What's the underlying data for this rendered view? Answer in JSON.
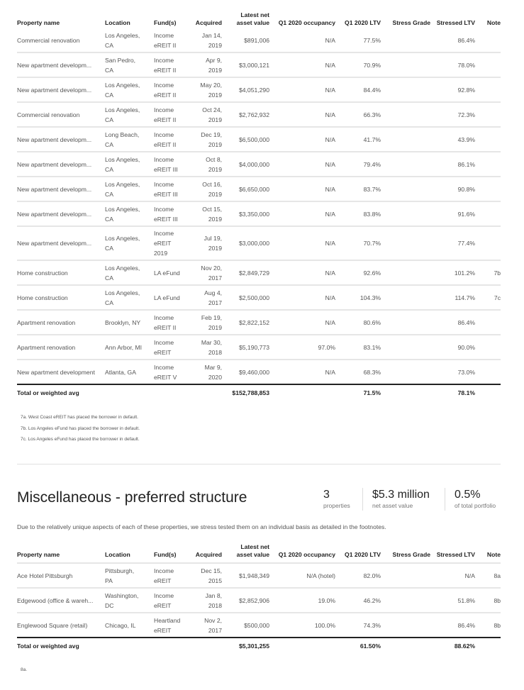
{
  "columns": {
    "name": "Property name",
    "location": "Location",
    "funds": "Fund(s)",
    "acquired": "Acquired",
    "nav_line1": "Latest net",
    "nav_line2": "asset value",
    "occupancy": "Q1 2020 occupancy",
    "ltv": "Q1 2020 LTV",
    "stress_grade": "Stress Grade",
    "stressed_ltv": "Stressed LTV",
    "note": "Note"
  },
  "table1": {
    "rows": [
      {
        "name": "Commercial renovation",
        "loc1": "Los Angeles,",
        "loc2": "CA",
        "fund1": "Income",
        "fund2": "eREIT II",
        "fund3": "",
        "acq1": "Jan 14,",
        "acq2": "2019",
        "nav": "$891,006",
        "occ": "N/A",
        "ltv": "77.5%",
        "sg": "",
        "sltv": "86.4%",
        "note": ""
      },
      {
        "name": "New apartment developm...",
        "loc1": "San Pedro,",
        "loc2": "CA",
        "fund1": "Income",
        "fund2": "eREIT II",
        "fund3": "",
        "acq1": "Apr 9,",
        "acq2": "2019",
        "nav": "$3,000,121",
        "occ": "N/A",
        "ltv": "70.9%",
        "sg": "",
        "sltv": "78.0%",
        "note": ""
      },
      {
        "name": "New apartment developm...",
        "loc1": "Los Angeles,",
        "loc2": "CA",
        "fund1": "Income",
        "fund2": "eREIT II",
        "fund3": "",
        "acq1": "May 20,",
        "acq2": "2019",
        "nav": "$4,051,290",
        "occ": "N/A",
        "ltv": "84.4%",
        "sg": "",
        "sltv": "92.8%",
        "note": ""
      },
      {
        "name": "Commercial renovation",
        "loc1": "Los Angeles,",
        "loc2": "CA",
        "fund1": "Income",
        "fund2": "eREIT II",
        "fund3": "",
        "acq1": "Oct 24,",
        "acq2": "2019",
        "nav": "$2,762,932",
        "occ": "N/A",
        "ltv": "66.3%",
        "sg": "",
        "sltv": "72.3%",
        "note": ""
      },
      {
        "name": "New apartment developm...",
        "loc1": "Long Beach,",
        "loc2": "CA",
        "fund1": "Income",
        "fund2": "eREIT II",
        "fund3": "",
        "acq1": "Dec 19,",
        "acq2": "2019",
        "nav": "$6,500,000",
        "occ": "N/A",
        "ltv": "41.7%",
        "sg": "",
        "sltv": "43.9%",
        "note": ""
      },
      {
        "name": "New apartment developm...",
        "loc1": "Los Angeles,",
        "loc2": "CA",
        "fund1": "Income",
        "fund2": "eREIT III",
        "fund3": "",
        "acq1": "Oct 8,",
        "acq2": "2019",
        "nav": "$4,000,000",
        "occ": "N/A",
        "ltv": "79.4%",
        "sg": "",
        "sltv": "86.1%",
        "note": ""
      },
      {
        "name": "New apartment developm...",
        "loc1": "Los Angeles,",
        "loc2": "CA",
        "fund1": "Income",
        "fund2": "eREIT III",
        "fund3": "",
        "acq1": "Oct 16,",
        "acq2": "2019",
        "nav": "$6,650,000",
        "occ": "N/A",
        "ltv": "83.7%",
        "sg": "",
        "sltv": "90.8%",
        "note": ""
      },
      {
        "name": "New apartment developm...",
        "loc1": "Los Angeles,",
        "loc2": "CA",
        "fund1": "Income",
        "fund2": "eREIT III",
        "fund3": "",
        "acq1": "Oct 15,",
        "acq2": "2019",
        "nav": "$3,350,000",
        "occ": "N/A",
        "ltv": "83.8%",
        "sg": "",
        "sltv": "91.6%",
        "note": ""
      },
      {
        "name": "New apartment developm...",
        "loc1": "Los Angeles,",
        "loc2": "CA",
        "fund1": "Income",
        "fund2": "eREIT",
        "fund3": "2019",
        "acq1": "Jul 19,",
        "acq2": "2019",
        "nav": "$3,000,000",
        "occ": "N/A",
        "ltv": "70.7%",
        "sg": "",
        "sltv": "77.4%",
        "note": ""
      },
      {
        "name": "Home construction",
        "loc1": "Los Angeles,",
        "loc2": "CA",
        "fund1": "LA eFund",
        "fund2": "",
        "fund3": "",
        "acq1": "Nov 20,",
        "acq2": "2017",
        "nav": "$2,849,729",
        "occ": "N/A",
        "ltv": "92.6%",
        "sg": "",
        "sltv": "101.2%",
        "note": "7b"
      },
      {
        "name": "Home construction",
        "loc1": "Los Angeles,",
        "loc2": "CA",
        "fund1": "LA eFund",
        "fund2": "",
        "fund3": "",
        "acq1": "Aug 4,",
        "acq2": "2017",
        "nav": "$2,500,000",
        "occ": "N/A",
        "ltv": "104.3%",
        "sg": "",
        "sltv": "114.7%",
        "note": "7c"
      },
      {
        "name": "Apartment renovation",
        "loc1": "Brooklyn, NY",
        "loc2": "",
        "fund1": "Income",
        "fund2": "eREIT II",
        "fund3": "",
        "acq1": "Feb 19,",
        "acq2": "2019",
        "nav": "$2,822,152",
        "occ": "N/A",
        "ltv": "80.6%",
        "sg": "",
        "sltv": "86.4%",
        "note": ""
      },
      {
        "name": "Apartment renovation",
        "loc1": "Ann Arbor, MI",
        "loc2": "",
        "fund1": "Income",
        "fund2": "eREIT",
        "fund3": "",
        "acq1": "Mar 30,",
        "acq2": "2018",
        "nav": "$5,190,773",
        "occ": "97.0%",
        "ltv": "83.1%",
        "sg": "",
        "sltv": "90.0%",
        "note": ""
      },
      {
        "name": "New apartment development",
        "loc1": "Atlanta, GA",
        "loc2": "",
        "fund1": "Income",
        "fund2": "eREIT V",
        "fund3": "",
        "acq1": "Mar 9,",
        "acq2": "2020",
        "nav": "$9,460,000",
        "occ": "N/A",
        "ltv": "68.3%",
        "sg": "",
        "sltv": "73.0%",
        "note": ""
      }
    ],
    "total": {
      "label": "Total or weighted avg",
      "nav": "$152,788,853",
      "ltv": "71.5%",
      "sltv": "78.1%"
    },
    "footnotes": [
      "7a. West Coast eREIT has placed the borrower in default.",
      "7b. Los Angeles eFund has placed the borrower in default.",
      "7c. Los Angeles eFund has placed the borrower in default."
    ]
  },
  "section": {
    "title": "Miscellaneous - preferred structure",
    "stats": [
      {
        "value": "3",
        "label": "properties"
      },
      {
        "value": "$5.3 million",
        "label": "net asset value"
      },
      {
        "value": "0.5%",
        "label": "of total portfolio"
      }
    ],
    "description": "Due to the relatively unique aspects of each of these properties, we stress tested them on an individual basis as detailed in the footnotes."
  },
  "table2": {
    "rows": [
      {
        "name": "Ace Hotel Pittsburgh",
        "loc1": "Pittsburgh,",
        "loc2": "PA",
        "fund1": "Income",
        "fund2": "eREIT",
        "fund3": "",
        "acq1": "Dec 15,",
        "acq2": "2015",
        "nav": "$1,948,349",
        "occ": "N/A (hotel)",
        "ltv": "82.0%",
        "sg": "",
        "sltv": "N/A",
        "note": "8a"
      },
      {
        "name": "Edgewood (office & wareh...",
        "loc1": "Washington,",
        "loc2": "DC",
        "fund1": "Income",
        "fund2": "eREIT",
        "fund3": "",
        "acq1": "Jan 8,",
        "acq2": "2018",
        "nav": "$2,852,906",
        "occ": "19.0%",
        "ltv": "46.2%",
        "sg": "",
        "sltv": "51.8%",
        "note": "8b"
      },
      {
        "name": "Englewood Square (retail)",
        "loc1": "Chicago, IL",
        "loc2": "",
        "fund1": "Heartland",
        "fund2": "eREIT",
        "fund3": "",
        "acq1": "Nov 2,",
        "acq2": "2017",
        "nav": "$500,000",
        "occ": "100.0%",
        "ltv": "74.3%",
        "sg": "",
        "sltv": "86.4%",
        "note": "8b"
      }
    ],
    "total": {
      "label": "Total or weighted avg",
      "nav": "$5,301,255",
      "ltv": "61.50%",
      "sltv": "88.62%"
    },
    "footnotes": [
      "8a."
    ]
  }
}
